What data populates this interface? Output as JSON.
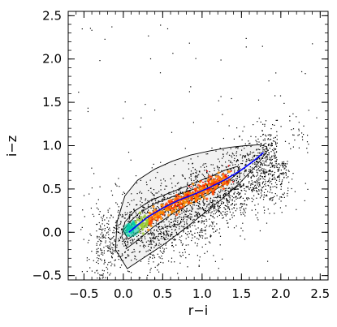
{
  "chart_data": {
    "type": "scatter",
    "xlabel": "r−i",
    "ylabel": "i−z",
    "xlim": [
      -0.7,
      2.6
    ],
    "ylim": [
      -0.55,
      2.55
    ],
    "xticks": [
      -0.5,
      0.0,
      0.5,
      1.0,
      1.5,
      2.0,
      2.5
    ],
    "xtick_labels": [
      "−0.5",
      "0.0",
      "0.5",
      "1.0",
      "1.5",
      "2.0",
      "2.5"
    ],
    "yticks": [
      -0.5,
      0.0,
      0.5,
      1.0,
      1.5,
      2.0,
      2.5
    ],
    "ytick_labels": [
      "−0.5",
      "0.0",
      "0.5",
      "1.0",
      "1.5",
      "2.0",
      "2.5"
    ],
    "grid": false,
    "colors": {
      "points": "#000000",
      "fit_line": "#0000ff",
      "contours": "#000000",
      "density_low": "#f2f2f2",
      "density_mid": "#ff8c00",
      "density_high": "#00c8a0"
    },
    "locus_fit": {
      "x": [
        0.07,
        0.15,
        0.3,
        0.5,
        0.7,
        0.9,
        1.1,
        1.3,
        1.5,
        1.65,
        1.78
      ],
      "y": [
        0.0,
        0.06,
        0.17,
        0.28,
        0.37,
        0.44,
        0.52,
        0.61,
        0.72,
        0.82,
        0.92
      ]
    },
    "contours": [
      {
        "x": [
          0.02,
          0.18,
          0.4,
          0.62,
          0.85,
          1.1,
          1.35,
          1.55,
          1.72,
          1.82,
          1.83,
          1.7,
          1.48,
          1.25,
          1.0,
          0.75,
          0.5,
          0.25,
          0.05,
          -0.1,
          -0.08,
          0.02
        ],
        "y": [
          0.42,
          0.6,
          0.73,
          0.82,
          0.89,
          0.94,
          0.98,
          1.0,
          1.01,
          0.99,
          0.94,
          0.78,
          0.57,
          0.38,
          0.2,
          0.02,
          -0.15,
          -0.3,
          -0.42,
          -0.2,
          0.12,
          0.42
        ]
      },
      {
        "x": [
          0.02,
          0.15,
          0.35,
          0.6,
          0.85,
          1.1,
          1.3,
          1.45,
          1.48,
          1.3,
          1.1,
          0.85,
          0.6,
          0.38,
          0.2,
          0.05,
          -0.02,
          0.02
        ],
        "y": [
          0.12,
          0.25,
          0.37,
          0.46,
          0.55,
          0.64,
          0.72,
          0.76,
          0.7,
          0.57,
          0.45,
          0.33,
          0.2,
          0.06,
          -0.08,
          -0.18,
          -0.05,
          0.12
        ]
      },
      {
        "x": [
          0.0,
          0.08,
          0.2,
          0.4,
          0.65,
          0.9,
          1.1,
          1.22,
          1.05,
          0.8,
          0.55,
          0.32,
          0.18,
          0.06,
          0.0
        ],
        "y": [
          0.02,
          0.12,
          0.22,
          0.33,
          0.42,
          0.5,
          0.56,
          0.55,
          0.45,
          0.35,
          0.25,
          0.12,
          0.0,
          -0.08,
          0.02
        ]
      }
    ]
  }
}
